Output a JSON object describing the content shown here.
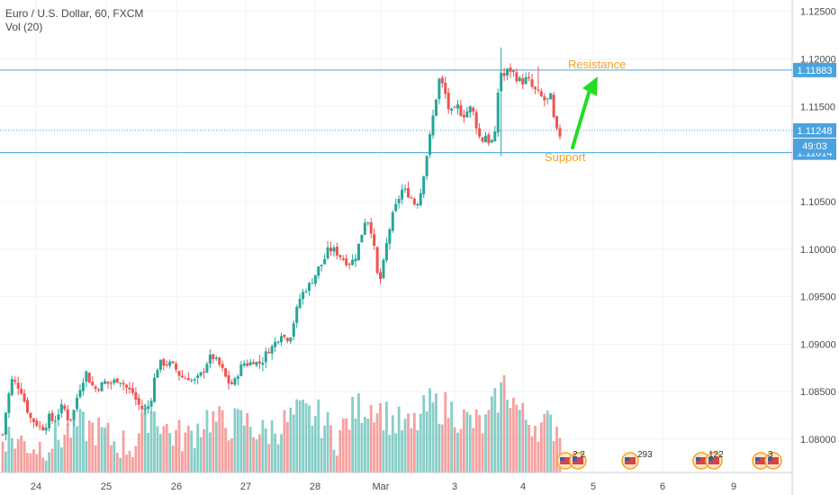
{
  "symbol": {
    "title": "Euro / U.S. Dollar, 60, FXCM",
    "volume_label": "Vol (20)"
  },
  "colors": {
    "up": "#26a69a",
    "down": "#ef5350",
    "level_line": "#4aa3df",
    "annotation": "#f7a128",
    "arrow": "#22dd22"
  },
  "chart_data": {
    "type": "candlestick",
    "title": "Euro / U.S. Dollar, 60, FXCM",
    "ylim": [
      1.0765,
      1.1262
    ],
    "y_ticks": [
      "1.08000",
      "1.08500",
      "1.09000",
      "1.09500",
      "1.10000",
      "1.10500",
      "1.11000",
      "1.11500",
      "1.12000",
      "1.12500"
    ],
    "x_ticks": [
      "24",
      "25",
      "26",
      "27",
      "28",
      "Mar",
      "3",
      "4",
      "5",
      "6",
      "9"
    ],
    "close_path": [
      [
        0,
        1.0805
      ],
      [
        1,
        1.084
      ],
      [
        2,
        1.0862
      ],
      [
        3,
        1.0858
      ],
      [
        4,
        1.0851
      ],
      [
        5,
        1.0835
      ],
      [
        6,
        1.0822
      ],
      [
        7,
        1.0818
      ],
      [
        8,
        1.0813
      ],
      [
        9,
        1.0812
      ],
      [
        10,
        1.0823
      ],
      [
        11,
        1.0818
      ],
      [
        12,
        1.0828
      ],
      [
        13,
        1.0836
      ],
      [
        14,
        1.0822
      ],
      [
        15,
        1.0823
      ],
      [
        16,
        1.0844
      ],
      [
        17,
        1.086
      ],
      [
        18,
        1.087
      ],
      [
        19,
        1.0858
      ],
      [
        20,
        1.0853
      ],
      [
        21,
        1.0856
      ],
      [
        22,
        1.086
      ],
      [
        23,
        1.0858
      ],
      [
        24,
        1.0861
      ],
      [
        25,
        1.0864
      ],
      [
        26,
        1.0858
      ],
      [
        27,
        1.0852
      ],
      [
        28,
        1.0849
      ],
      [
        29,
        1.0838
      ],
      [
        30,
        1.0832
      ],
      [
        31,
        1.083
      ],
      [
        32,
        1.0844
      ],
      [
        33,
        1.0873
      ],
      [
        34,
        1.088
      ],
      [
        35,
        1.088
      ],
      [
        36,
        1.0879
      ],
      [
        37,
        1.0876
      ],
      [
        38,
        1.0868
      ],
      [
        39,
        1.0864
      ],
      [
        40,
        1.0865
      ],
      [
        41,
        1.086
      ],
      [
        42,
        1.0864
      ],
      [
        43,
        1.087
      ],
      [
        44,
        1.0881
      ],
      [
        45,
        1.0888
      ],
      [
        46,
        1.0882
      ],
      [
        47,
        1.0876
      ],
      [
        48,
        1.0865
      ],
      [
        49,
        1.0857
      ],
      [
        50,
        1.0861
      ],
      [
        51,
        1.0874
      ],
      [
        52,
        1.088
      ],
      [
        53,
        1.0879
      ],
      [
        54,
        1.0883
      ],
      [
        55,
        1.0879
      ],
      [
        56,
        1.0883
      ],
      [
        57,
        1.0893
      ],
      [
        58,
        1.0897
      ],
      [
        59,
        1.0904
      ],
      [
        60,
        1.0912
      ],
      [
        61,
        1.0905
      ],
      [
        62,
        1.091
      ],
      [
        63,
        1.093
      ],
      [
        64,
        1.0948
      ],
      [
        65,
        1.0957
      ],
      [
        66,
        1.0962
      ],
      [
        67,
        1.097
      ],
      [
        68,
        1.098
      ],
      [
        69,
        1.0986
      ],
      [
        70,
        1.0998
      ],
      [
        71,
        1.1
      ],
      [
        72,
        1.0996
      ],
      [
        73,
        1.0991
      ],
      [
        74,
        1.0987
      ],
      [
        75,
        1.0985
      ],
      [
        76,
        1.0993
      ],
      [
        77,
        1.101
      ],
      [
        78,
        1.103
      ],
      [
        79,
        1.103
      ],
      [
        80,
        1.1
      ],
      [
        81,
        1.096
      ],
      [
        82,
        1.0985
      ],
      [
        83,
        1.1015
      ],
      [
        84,
        1.1035
      ],
      [
        85,
        1.105
      ],
      [
        86,
        1.1062
      ],
      [
        87,
        1.106
      ],
      [
        88,
        1.1054
      ],
      [
        89,
        1.1045
      ],
      [
        90,
        1.106
      ],
      [
        91,
        1.109
      ],
      [
        92,
        1.1118
      ],
      [
        93,
        1.115
      ],
      [
        94,
        1.1178
      ],
      [
        95,
        1.117
      ],
      [
        96,
        1.1148
      ],
      [
        97,
        1.1142
      ],
      [
        98,
        1.115
      ],
      [
        99,
        1.114
      ],
      [
        100,
        1.1145
      ],
      [
        101,
        1.115
      ],
      [
        102,
        1.113
      ],
      [
        103,
        1.1112
      ],
      [
        104,
        1.112
      ],
      [
        105,
        1.111
      ],
      [
        106,
        1.112
      ],
      [
        107,
        1.1188
      ],
      [
        108,
        1.1182
      ],
      [
        109,
        1.119
      ],
      [
        110,
        1.1185
      ],
      [
        111,
        1.1178
      ],
      [
        112,
        1.1176
      ],
      [
        113,
        1.118
      ],
      [
        114,
        1.117
      ],
      [
        115,
        1.1165
      ],
      [
        116,
        1.116
      ],
      [
        117,
        1.1155
      ],
      [
        118,
        1.116
      ],
      [
        119,
        1.1125
      ],
      [
        120,
        1.112
      ]
    ],
    "volume_profile": [
      [
        0,
        0.25
      ],
      [
        4,
        0.15
      ],
      [
        8,
        0.1
      ],
      [
        12,
        0.2
      ],
      [
        16,
        0.35
      ],
      [
        20,
        0.3
      ],
      [
        24,
        0.15
      ],
      [
        28,
        0.1
      ],
      [
        32,
        0.55
      ],
      [
        36,
        0.25
      ],
      [
        40,
        0.2
      ],
      [
        44,
        0.45
      ],
      [
        48,
        0.35
      ],
      [
        52,
        0.4
      ],
      [
        56,
        0.25
      ],
      [
        60,
        0.35
      ],
      [
        64,
        0.5
      ],
      [
        68,
        0.45
      ],
      [
        72,
        0.2
      ],
      [
        76,
        0.55
      ],
      [
        80,
        0.6
      ],
      [
        84,
        0.4
      ],
      [
        88,
        0.3
      ],
      [
        92,
        0.6
      ],
      [
        96,
        0.55
      ],
      [
        100,
        0.4
      ],
      [
        104,
        0.35
      ],
      [
        108,
        0.85
      ],
      [
        112,
        0.45
      ],
      [
        116,
        0.35
      ],
      [
        120,
        0.35
      ]
    ],
    "price_labels": [
      {
        "value": 1.11883,
        "text": "1.11883"
      },
      {
        "value": 1.11248,
        "text": "1.11248"
      },
      {
        "value": 1.11014,
        "text": "1.11014"
      }
    ],
    "countdown": "49:03",
    "horizontal_levels": [
      {
        "value": 1.11883,
        "name": "Resistance",
        "style": "solid"
      },
      {
        "value": 1.11248,
        "name": "",
        "style": "dotted"
      },
      {
        "value": 1.11014,
        "name": "Support",
        "style": "solid"
      }
    ],
    "annotations": [
      {
        "text": "Resistance"
      },
      {
        "text": "Support"
      }
    ],
    "event_markers": [
      {
        "label": "2 2"
      },
      {
        "label": "293"
      },
      {
        "label": "122"
      },
      {
        "label": "3"
      }
    ],
    "grid": true
  }
}
